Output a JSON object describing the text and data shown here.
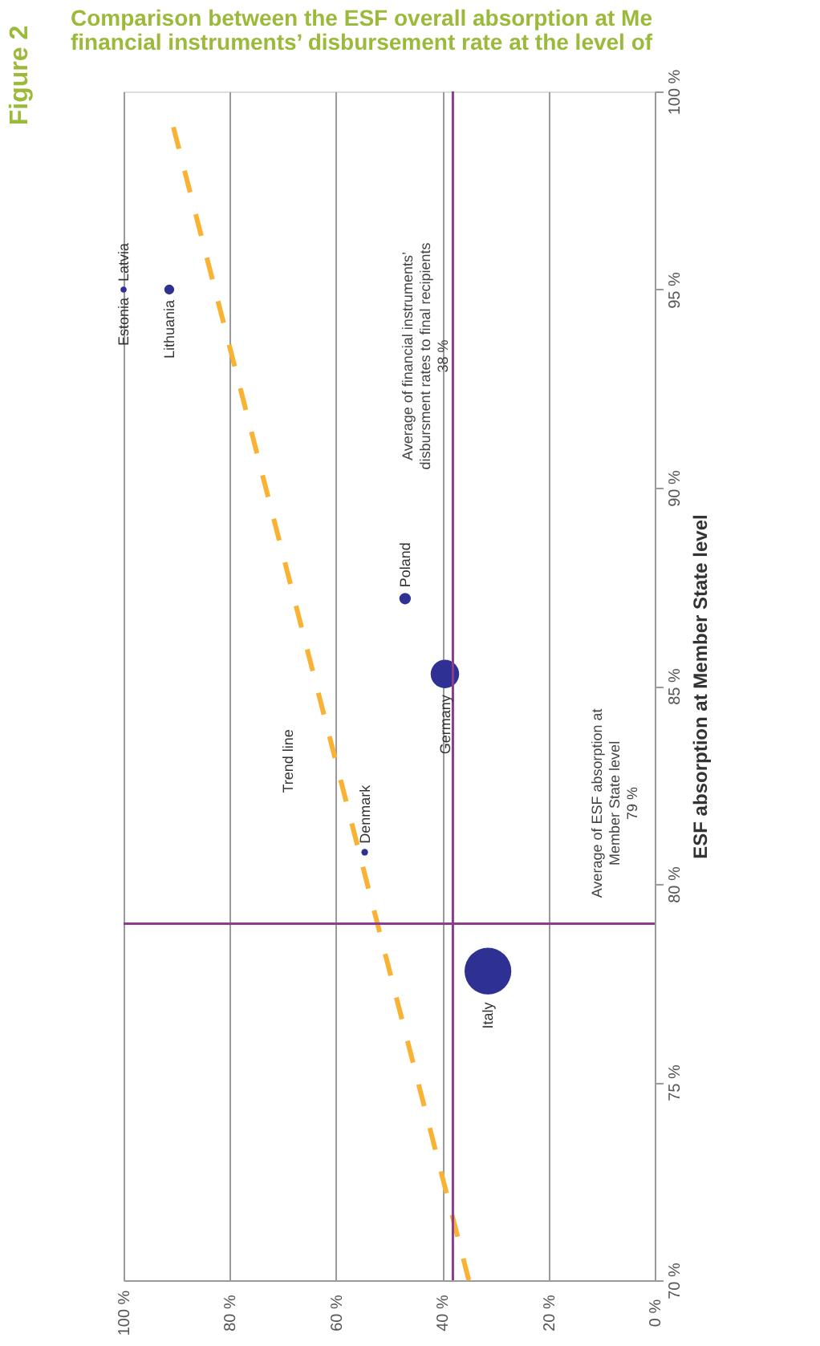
{
  "chart_data": {
    "type": "bubble",
    "title": "Comparison between the ESF overall absorption at Me\nfinancial instruments’ disbursement rate at the level of",
    "ylabel": "ESF absorption at Member State level",
    "ylim": [
      70,
      100
    ],
    "yticks": [
      {
        "value": 70,
        "label": "70 %"
      },
      {
        "value": 75,
        "label": "75 %"
      },
      {
        "value": 80,
        "label": "80 %"
      },
      {
        "value": 85,
        "label": "85 %"
      },
      {
        "value": 90,
        "label": "90 %"
      },
      {
        "value": 95,
        "label": "95 %"
      },
      {
        "value": 100,
        "label": "100 %"
      }
    ],
    "xlim": [
      100,
      0
    ],
    "xticks": [
      {
        "value": 0,
        "label": "0 %"
      },
      {
        "value": 20,
        "label": "20 %"
      },
      {
        "value": 40,
        "label": "40 %"
      },
      {
        "value": 60,
        "label": "60 %"
      },
      {
        "value": 80,
        "label": "80 %"
      },
      {
        "value": 100,
        "label": "100 %"
      }
    ],
    "grid": "x",
    "series": [
      {
        "color": "#2e3192",
        "x": [
          100,
          100,
          91.4,
          47,
          39.5,
          54.6,
          31.4
        ],
        "values": [
          95,
          95,
          95,
          87.2,
          85.3,
          80.8,
          77.8
        ],
        "sizes": [
          0.015,
          0.015,
          0.045,
          0.06,
          0.37,
          0.02,
          1
        ]
      },
      {
        "type": "line",
        "color": "#f9b233",
        "line_style": "dashed",
        "x": [
          35,
          91
        ],
        "values": [
          70,
          99.3
        ]
      }
    ],
    "ref_lines": [
      {
        "axis": "x",
        "value": 38,
        "label": "Average of financial instruments’\ndisbursment rates to final recipients\n38 %",
        "color": "#8e3a8e"
      },
      {
        "axis": "y",
        "value": 79,
        "label": "Average of ESF absorption at\nMember State level\n79 %",
        "color": "#8e3a8e"
      }
    ],
    "annotations": [
      "Figure 2",
      {
        "text": "Estonia",
        "x": 100,
        "y": 95
      },
      {
        "text": "Latvia",
        "x": 100,
        "y": 95
      },
      {
        "text": "Lithuania",
        "x": 91.4,
        "y": 95
      },
      {
        "text": "Poland",
        "x": 47,
        "y": 87.2
      },
      {
        "text": "Germany",
        "x": 39.5,
        "y": 85.3
      },
      {
        "text": "Denmark",
        "x": 54.6,
        "y": 80.8
      },
      {
        "text": "Italy",
        "x": 31.4,
        "y": 77.8
      },
      {
        "text": "Trend line",
        "x": 60,
        "y": 83.1
      }
    ]
  }
}
